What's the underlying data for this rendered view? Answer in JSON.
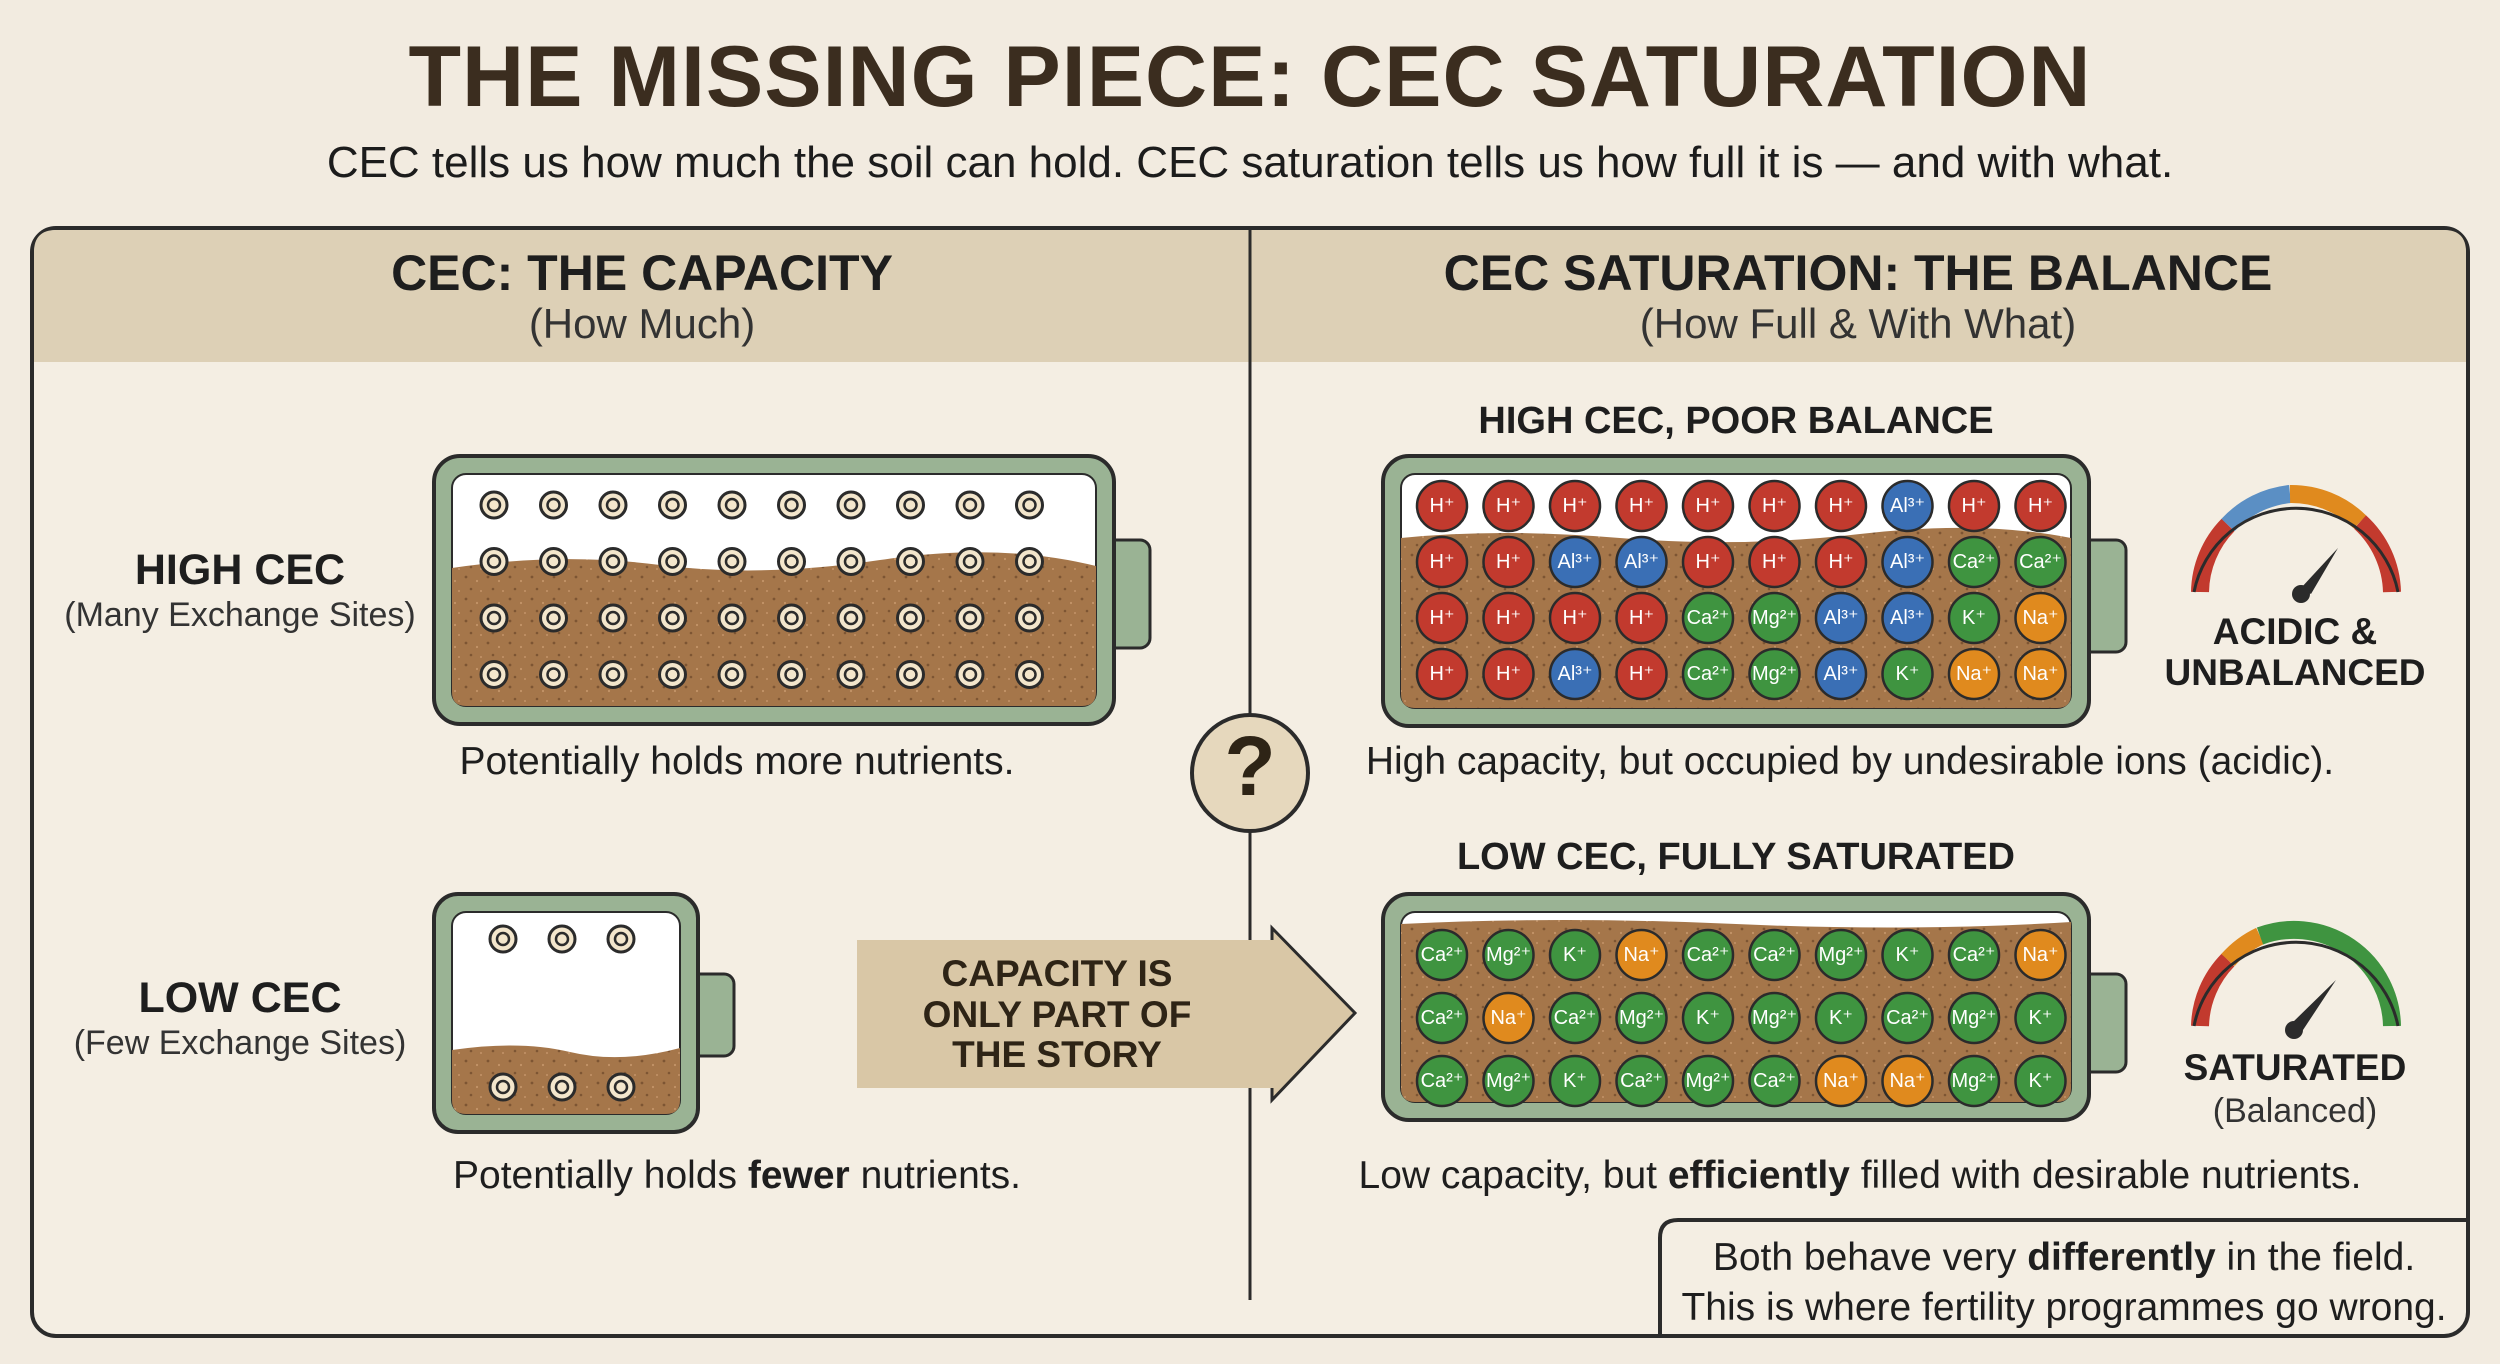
{
  "title": "THE MISSING PIECE: CEC SATURATION",
  "subtitle": "CEC tells us how much the soil can hold. CEC saturation tells us how full it is — and with what.",
  "left_panel": {
    "title": "CEC: THE CAPACITY",
    "subtitle": "(How Much)",
    "high": {
      "label": "HIGH CEC",
      "sublabel": "(Many Exchange Sites)",
      "caption": "Potentially holds more nutrients."
    },
    "low": {
      "label": "LOW CEC",
      "sublabel": "(Few Exchange Sites)",
      "caption_pre": "Potentially holds ",
      "caption_bold": "fewer",
      "caption_post": " nutrients."
    }
  },
  "center": {
    "question_mark": "?",
    "arrow_lines": [
      "CAPACITY IS",
      "ONLY PART OF",
      "THE STORY"
    ]
  },
  "right_panel": {
    "title": "CEC SATURATION: THE BALANCE",
    "subtitle": "(How Full & With What)",
    "poor": {
      "heading": "HIGH CEC, POOR BALANCE",
      "gauge_label_line1": "ACIDIC &",
      "gauge_label_line2": "UNBALANCED",
      "caption": "High capacity, but occupied by undesirable ions (acidic).",
      "rows": [
        [
          "H⁺",
          "H⁺",
          "H⁺",
          "H⁺",
          "H⁺",
          "H⁺",
          "H⁺",
          "Al³⁺",
          "H⁺",
          "H⁺"
        ],
        [
          "H⁺",
          "H⁺",
          "Al³⁺",
          "Al³⁺",
          "H⁺",
          "H⁺",
          "H⁺",
          "Al³⁺",
          "Ca²⁺",
          "Ca²⁺"
        ],
        [
          "H⁺",
          "H⁺",
          "H⁺",
          "H⁺",
          "Ca²⁺",
          "Mg²⁺",
          "Al³⁺",
          "Al³⁺",
          "K⁺",
          "Na⁺"
        ],
        [
          "H⁺",
          "H⁺",
          "Al³⁺",
          "H⁺",
          "Ca²⁺",
          "Mg²⁺",
          "Al³⁺",
          "K⁺",
          "Na⁺",
          "Na⁺"
        ]
      ]
    },
    "saturated": {
      "heading": "LOW CEC, FULLY SATURATED",
      "gauge_label": "SATURATED",
      "gauge_sublabel": "(Balanced)",
      "caption_pre": "Low capacity, but ",
      "caption_bold": "efficiently",
      "caption_post": " filled with desirable nutrients.",
      "rows": [
        [
          "Ca²⁺",
          "Mg²⁺",
          "K⁺",
          "Na⁺",
          "Ca²⁺",
          "Ca²⁺",
          "Mg²⁺",
          "K⁺",
          "Ca²⁺",
          "Na⁺"
        ],
        [
          "Ca²⁺",
          "Na⁺",
          "Ca²⁺",
          "Mg²⁺",
          "K⁺",
          "Mg²⁺",
          "K⁺",
          "Ca²⁺",
          "Mg²⁺",
          "K⁺"
        ],
        [
          "Ca²⁺",
          "Mg²⁺",
          "K⁺",
          "Ca²⁺",
          "Mg²⁺",
          "Ca²⁺",
          "Na⁺",
          "Na⁺",
          "Mg²⁺",
          "K⁺"
        ]
      ]
    }
  },
  "footer": {
    "line1_pre": "Both behave very ",
    "line1_bold": "differently",
    "line1_post": " in the field.",
    "line2": "This is where fertility programmes go wrong."
  },
  "ion_colors": {
    "H⁺": "#c23a2e",
    "Al³⁺": "#3a6fb5",
    "Ca²⁺": "#3f9440",
    "Mg²⁺": "#3f9440",
    "K⁺": "#3f9440",
    "Na⁺": "#e08a1e"
  }
}
